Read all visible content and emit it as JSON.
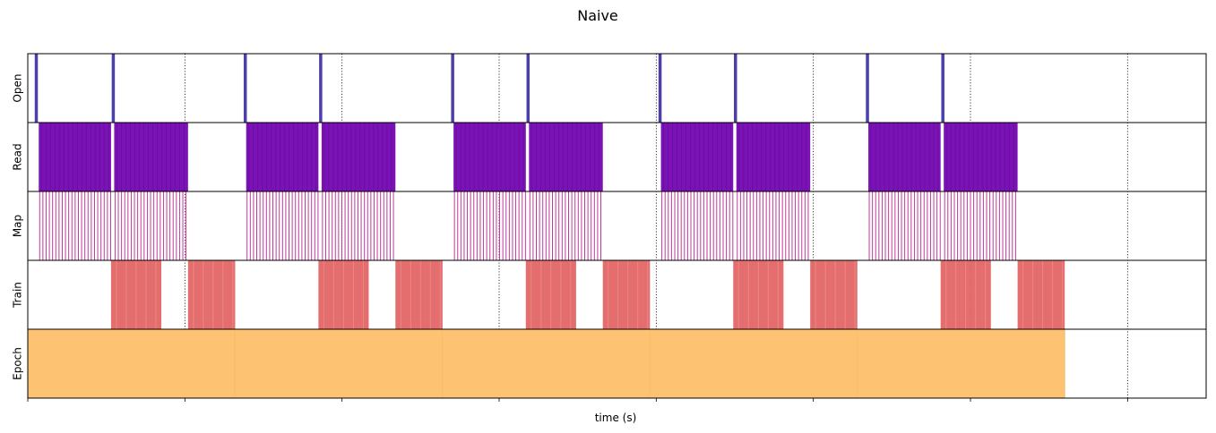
{
  "chart_data": {
    "type": "timeline",
    "title": "Naive",
    "xlabel": "time (s)",
    "xlim": [
      0,
      7.5
    ],
    "xticks": [
      0,
      1,
      2,
      3,
      4,
      5,
      6,
      7
    ],
    "grid_x": "dotted vertical lines at each tick",
    "rows": [
      {
        "name": "Open",
        "color": "#4b3fa8",
        "style": "open",
        "events": [
          [
            0.05,
            0.06
          ],
          [
            0.54,
            0.55
          ],
          [
            1.38,
            1.39
          ],
          [
            1.86,
            1.87
          ],
          [
            2.7,
            2.71
          ],
          [
            3.18,
            3.19
          ],
          [
            4.02,
            4.03
          ],
          [
            4.5,
            4.51
          ],
          [
            5.34,
            5.35
          ],
          [
            5.82,
            5.83
          ]
        ]
      },
      {
        "name": "Read",
        "color": "#7a12b5",
        "style": "dense",
        "events": [
          [
            0.07,
            0.53
          ],
          [
            0.55,
            1.02
          ],
          [
            1.39,
            1.85
          ],
          [
            1.87,
            2.34
          ],
          [
            2.71,
            3.17
          ],
          [
            3.19,
            3.66
          ],
          [
            4.03,
            4.49
          ],
          [
            4.51,
            4.98
          ],
          [
            5.35,
            5.81
          ],
          [
            5.83,
            6.3
          ]
        ]
      },
      {
        "name": "Map",
        "color": "#c0399a",
        "style": "stripes",
        "events": [
          [
            0.07,
            0.53
          ],
          [
            0.55,
            1.02
          ],
          [
            1.39,
            1.85
          ],
          [
            1.87,
            2.34
          ],
          [
            2.71,
            3.17
          ],
          [
            3.19,
            3.66
          ],
          [
            4.03,
            4.49
          ],
          [
            4.51,
            4.98
          ],
          [
            5.35,
            5.81
          ],
          [
            5.83,
            6.3
          ]
        ]
      },
      {
        "name": "Train",
        "color": "#e36666",
        "style": "blocks",
        "events": [
          [
            0.53,
            0.85
          ],
          [
            1.02,
            1.32
          ],
          [
            1.85,
            2.17
          ],
          [
            2.34,
            2.64
          ],
          [
            3.17,
            3.49
          ],
          [
            3.66,
            3.96
          ],
          [
            4.49,
            4.81
          ],
          [
            4.98,
            5.28
          ],
          [
            5.81,
            6.13
          ],
          [
            6.3,
            6.6
          ]
        ]
      },
      {
        "name": "Epoch",
        "color": "#fdc272",
        "style": "fill",
        "events": [
          [
            0.0,
            1.32
          ],
          [
            1.32,
            2.64
          ],
          [
            2.64,
            3.96
          ],
          [
            3.96,
            5.28
          ],
          [
            5.28,
            6.6
          ]
        ]
      }
    ]
  }
}
